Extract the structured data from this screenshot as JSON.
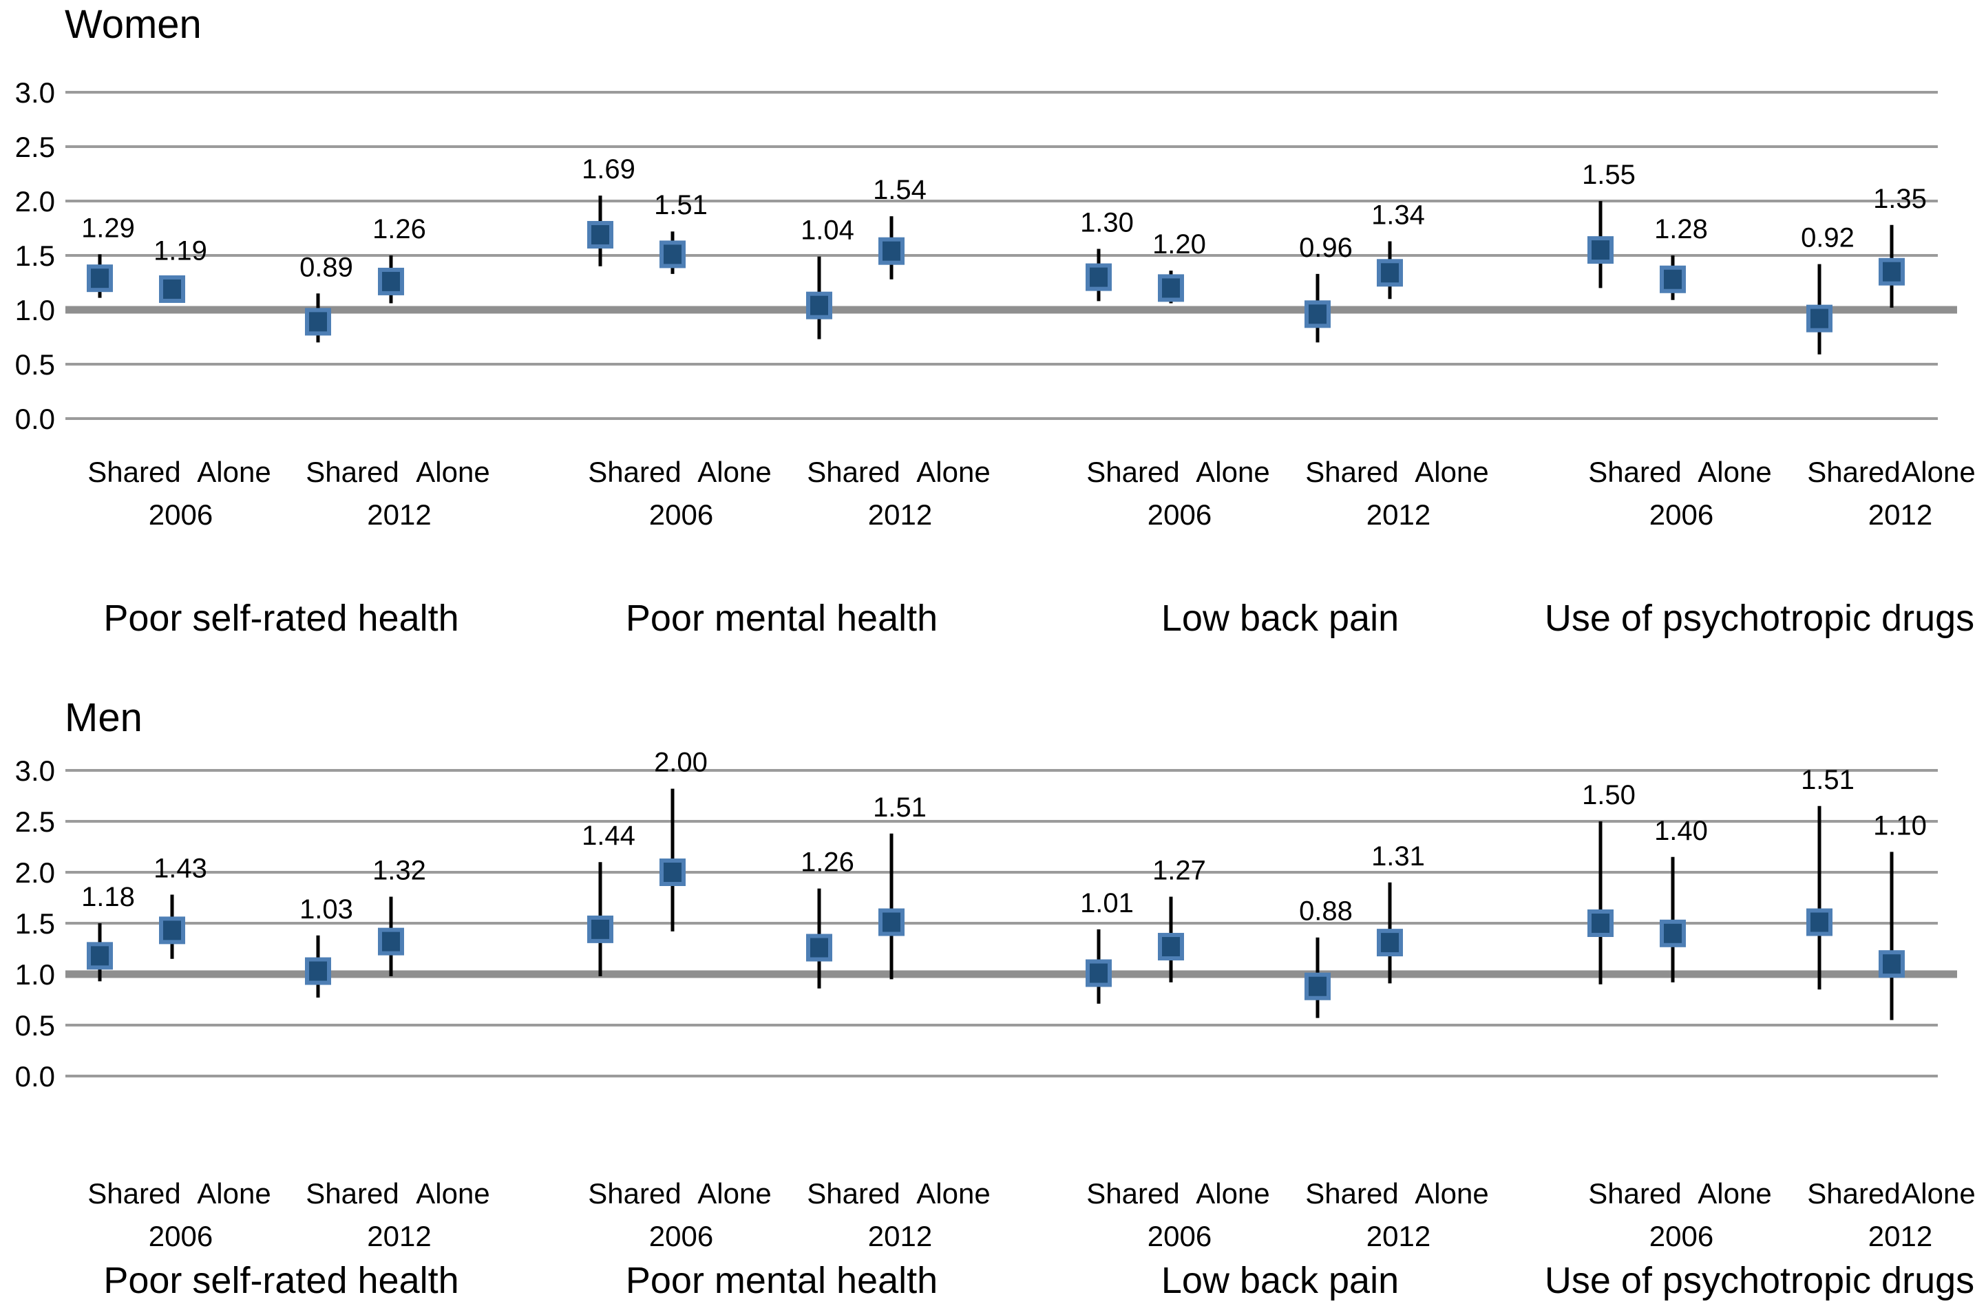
{
  "figure": {
    "background": "#ffffff",
    "colors": {
      "marker_fill": "#1F4E79",
      "marker_stroke": "#4E7FB5",
      "whisker": "#000000",
      "gridline": "#9B9B9B",
      "reference_line": "#8F8F8F",
      "text": "#000000"
    }
  },
  "chart_data": {
    "type": "scatter",
    "subtype": "forest-plot-point-estimates-with-ci",
    "grid": "on",
    "y_axis": {
      "min": 0.0,
      "max": 3.0,
      "tick_step": 0.5,
      "tick_labels": [
        "3.0",
        "2.5",
        "2.0",
        "1.5",
        "1.0",
        "0.5",
        "0.0"
      ],
      "reference_line_value": 1.0
    },
    "x_structure": {
      "arrangement_labels": [
        "Shared",
        "Alone"
      ],
      "year_labels": [
        "2006",
        "2012"
      ]
    },
    "panels": [
      {
        "title": "Women",
        "groups": [
          {
            "label": "Poor self-rated health",
            "pairs": [
              {
                "year": "2006",
                "points": [
                  {
                    "arrangement": "Shared",
                    "value": 1.29,
                    "value_label": "1.29",
                    "ci": [
                      1.11,
                      1.51
                    ]
                  },
                  {
                    "arrangement": "Alone",
                    "value": 1.19,
                    "value_label": "1.19",
                    "ci": [
                      1.09,
                      1.3
                    ]
                  }
                ]
              },
              {
                "year": "2012",
                "points": [
                  {
                    "arrangement": "Shared",
                    "value": 0.89,
                    "value_label": "0.89",
                    "ci": [
                      0.7,
                      1.15
                    ]
                  },
                  {
                    "arrangement": "Alone",
                    "value": 1.26,
                    "value_label": "1.26",
                    "ci": [
                      1.06,
                      1.5
                    ]
                  }
                ]
              }
            ]
          },
          {
            "label": "Poor mental health",
            "pairs": [
              {
                "year": "2006",
                "points": [
                  {
                    "arrangement": "Shared",
                    "value": 1.69,
                    "value_label": "1.69",
                    "ci": [
                      1.4,
                      2.05
                    ]
                  },
                  {
                    "arrangement": "Alone",
                    "value": 1.51,
                    "value_label": "1.51",
                    "ci": [
                      1.33,
                      1.72
                    ]
                  }
                ]
              },
              {
                "year": "2012",
                "points": [
                  {
                    "arrangement": "Shared",
                    "value": 1.04,
                    "value_label": "1.04",
                    "ci": [
                      0.73,
                      1.49
                    ]
                  },
                  {
                    "arrangement": "Alone",
                    "value": 1.54,
                    "value_label": "1.54",
                    "ci": [
                      1.28,
                      1.86
                    ]
                  }
                ]
              }
            ]
          },
          {
            "label": "Low back pain",
            "pairs": [
              {
                "year": "2006",
                "points": [
                  {
                    "arrangement": "Shared",
                    "value": 1.3,
                    "value_label": "1.30",
                    "ci": [
                      1.08,
                      1.56
                    ]
                  },
                  {
                    "arrangement": "Alone",
                    "value": 1.2,
                    "value_label": "1.20",
                    "ci": [
                      1.06,
                      1.36
                    ]
                  }
                ]
              },
              {
                "year": "2012",
                "points": [
                  {
                    "arrangement": "Shared",
                    "value": 0.96,
                    "value_label": "0.96",
                    "ci": [
                      0.7,
                      1.33
                    ]
                  },
                  {
                    "arrangement": "Alone",
                    "value": 1.34,
                    "value_label": "1.34",
                    "ci": [
                      1.1,
                      1.63
                    ]
                  }
                ]
              }
            ]
          },
          {
            "label": "Use of psychotropic drugs",
            "pairs": [
              {
                "year": "2006",
                "points": [
                  {
                    "arrangement": "Shared",
                    "value": 1.55,
                    "value_label": "1.55",
                    "ci": [
                      1.2,
                      2.0
                    ]
                  },
                  {
                    "arrangement": "Alone",
                    "value": 1.28,
                    "value_label": "1.28",
                    "ci": [
                      1.09,
                      1.5
                    ]
                  }
                ]
              },
              {
                "year": "2012",
                "points": [
                  {
                    "arrangement": "Shared",
                    "value": 0.92,
                    "value_label": "0.92",
                    "ci": [
                      0.59,
                      1.42
                    ]
                  },
                  {
                    "arrangement": "Alone",
                    "value": 1.35,
                    "value_label": "1.35",
                    "ci": [
                      1.02,
                      1.78
                    ]
                  }
                ]
              }
            ]
          }
        ]
      },
      {
        "title": "Men",
        "groups": [
          {
            "label": "Poor self-rated health",
            "pairs": [
              {
                "year": "2006",
                "points": [
                  {
                    "arrangement": "Shared",
                    "value": 1.18,
                    "value_label": "1.18",
                    "ci": [
                      0.93,
                      1.5
                    ]
                  },
                  {
                    "arrangement": "Alone",
                    "value": 1.43,
                    "value_label": "1.43",
                    "ci": [
                      1.15,
                      1.78
                    ]
                  }
                ]
              },
              {
                "year": "2012",
                "points": [
                  {
                    "arrangement": "Shared",
                    "value": 1.03,
                    "value_label": "1.03",
                    "ci": [
                      0.77,
                      1.38
                    ]
                  },
                  {
                    "arrangement": "Alone",
                    "value": 1.32,
                    "value_label": "1.32",
                    "ci": [
                      0.98,
                      1.76
                    ]
                  }
                ]
              }
            ]
          },
          {
            "label": "Poor mental health",
            "pairs": [
              {
                "year": "2006",
                "points": [
                  {
                    "arrangement": "Shared",
                    "value": 1.44,
                    "value_label": "1.44",
                    "ci": [
                      0.98,
                      2.1
                    ]
                  },
                  {
                    "arrangement": "Alone",
                    "value": 2.0,
                    "value_label": "2.00",
                    "ci": [
                      1.42,
                      2.82
                    ]
                  }
                ]
              },
              {
                "year": "2012",
                "points": [
                  {
                    "arrangement": "Shared",
                    "value": 1.26,
                    "value_label": "1.26",
                    "ci": [
                      0.86,
                      1.84
                    ]
                  },
                  {
                    "arrangement": "Alone",
                    "value": 1.51,
                    "value_label": "1.51",
                    "ci": [
                      0.95,
                      2.38
                    ]
                  }
                ]
              }
            ]
          },
          {
            "label": "Low back pain",
            "pairs": [
              {
                "year": "2006",
                "points": [
                  {
                    "arrangement": "Shared",
                    "value": 1.01,
                    "value_label": "1.01",
                    "ci": [
                      0.71,
                      1.44
                    ]
                  },
                  {
                    "arrangement": "Alone",
                    "value": 1.27,
                    "value_label": "1.27",
                    "ci": [
                      0.92,
                      1.76
                    ]
                  }
                ]
              },
              {
                "year": "2012",
                "points": [
                  {
                    "arrangement": "Shared",
                    "value": 0.88,
                    "value_label": "0.88",
                    "ci": [
                      0.57,
                      1.36
                    ]
                  },
                  {
                    "arrangement": "Alone",
                    "value": 1.31,
                    "value_label": "1.31",
                    "ci": [
                      0.91,
                      1.9
                    ]
                  }
                ]
              }
            ]
          },
          {
            "label": "Use of psychotropic drugs",
            "pairs": [
              {
                "year": "2006",
                "points": [
                  {
                    "arrangement": "Shared",
                    "value": 1.5,
                    "value_label": "1.50",
                    "ci": [
                      0.9,
                      2.5
                    ]
                  },
                  {
                    "arrangement": "Alone",
                    "value": 1.4,
                    "value_label": "1.40",
                    "ci": [
                      0.92,
                      2.15
                    ]
                  }
                ]
              },
              {
                "year": "2012",
                "points": [
                  {
                    "arrangement": "Shared",
                    "value": 1.51,
                    "value_label": "1.51",
                    "ci": [
                      0.85,
                      2.65
                    ]
                  },
                  {
                    "arrangement": "Alone",
                    "value": 1.1,
                    "value_label": "1.10",
                    "ci": [
                      0.55,
                      2.2
                    ]
                  }
                ]
              }
            ]
          }
        ]
      }
    ]
  }
}
